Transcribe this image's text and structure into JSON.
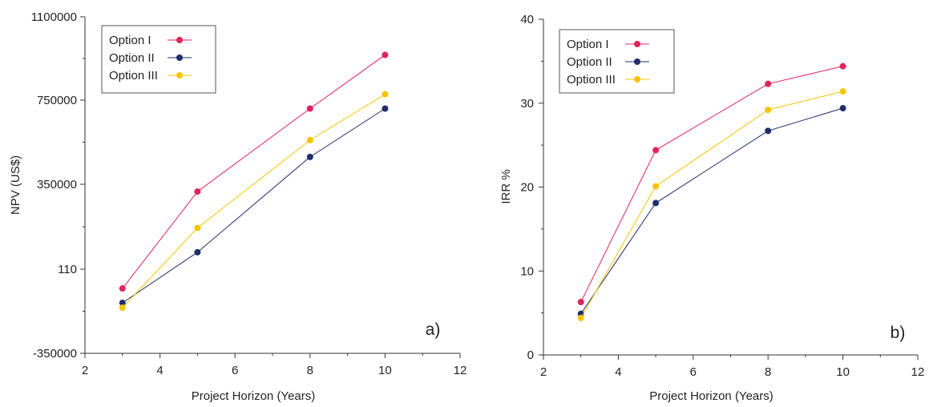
{
  "colors": {
    "option_1": "#e0245e",
    "option_2": "#1f2d6b",
    "option_3": "#f5c400"
  },
  "chart_data": [
    {
      "type": "line",
      "panel_label": "a)",
      "xlabel": "Project Horizon (Years)",
      "ylabel": "NPV (US$)",
      "xlim": [
        2,
        12
      ],
      "xticks": [
        2,
        4,
        6,
        8,
        10,
        12
      ],
      "ytick_labels": [
        "1100000",
        "750000",
        "350000",
        "110",
        "-350000"
      ],
      "legend": "top-left",
      "series": [
        {
          "name": "Option I",
          "x": [
            3,
            5,
            8,
            10
          ],
          "y": [
            -80000,
            320000,
            710000,
            940000
          ]
        },
        {
          "name": "Option II",
          "x": [
            3,
            5,
            8,
            10
          ],
          "y": [
            -140000,
            70000,
            480000,
            710000
          ]
        },
        {
          "name": "Option III",
          "x": [
            3,
            5,
            8,
            10
          ],
          "y": [
            -160000,
            170000,
            560000,
            775000
          ]
        }
      ]
    },
    {
      "type": "line",
      "panel_label": "b)",
      "xlabel": "Project Horizon (Years)",
      "ylabel": "IRR %",
      "xlim": [
        2,
        12
      ],
      "xticks": [
        2,
        4,
        6,
        8,
        10,
        12
      ],
      "ylim": [
        0,
        40
      ],
      "yticks": [
        0,
        10,
        20,
        30,
        40
      ],
      "legend": "top-left",
      "series": [
        {
          "name": "Option I",
          "x": [
            3,
            5,
            8,
            10
          ],
          "y": [
            6.3,
            24.4,
            32.3,
            34.4
          ]
        },
        {
          "name": "Option II",
          "x": [
            3,
            5,
            8,
            10
          ],
          "y": [
            4.9,
            18.1,
            26.7,
            29.4
          ]
        },
        {
          "name": "Option III",
          "x": [
            3,
            5,
            8,
            10
          ],
          "y": [
            4.4,
            20.1,
            29.2,
            31.4
          ]
        }
      ]
    }
  ]
}
